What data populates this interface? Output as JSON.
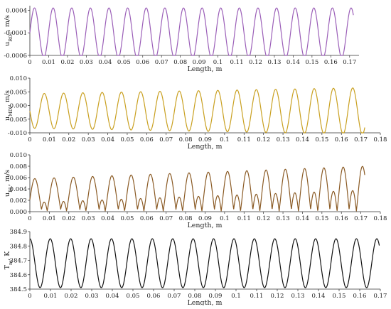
{
  "chart_data": [
    {
      "type": "line",
      "ylabel_main": "u",
      "ylabel_sub": "ROT",
      "ylabel_unit": ", m/s",
      "xlabel": "Length, m",
      "xlim": [
        0,
        0.175
      ],
      "ylim": [
        -0.0006,
        0.0005
      ],
      "xticks": [
        "0",
        "0.01",
        "0.02",
        "0.03",
        "0.04",
        "0.05",
        "0.06",
        "0.07",
        "0.08",
        "0.09",
        "0.1",
        "0.11",
        "0.12",
        "0.13",
        "0.14",
        "0.15",
        "0.16",
        "0.17"
      ],
      "yticks": [
        "0.0004",
        "-0.0001",
        "-0.0006"
      ],
      "color": "#9b5fb8",
      "signal": {
        "kind": "sine",
        "x_end": 0.172,
        "period": 0.0099,
        "phase_deg": 0,
        "center": -0.0001,
        "amplitude_start": 0.00055,
        "amplitude_end": 0.00055,
        "samples": 1200
      }
    },
    {
      "type": "line",
      "ylabel_main": "u",
      "ylabel_sub": "MIX",
      "ylabel_unit": ", m/s",
      "xlabel": "Length, m",
      "xlim": [
        0,
        0.18
      ],
      "ylim": [
        -0.01,
        0.01
      ],
      "xticks": [
        "0",
        "0.01",
        "0.02",
        "0.03",
        "0.04",
        "0.05",
        "0.06",
        "0.07",
        "0.08",
        "0.09",
        "0.1",
        "0.11",
        "0.12",
        "0.13",
        "0.14",
        "0.15",
        "0.16",
        "0.17",
        "0.18"
      ],
      "yticks": [
        "0.010",
        "0.005",
        "0.000",
        "-0.005",
        "-0.010"
      ],
      "color": "#c9a020",
      "signal": {
        "kind": "sine",
        "x_end": 0.172,
        "period": 0.0099,
        "phase_deg": 180,
        "center": -0.002,
        "amplitude_start": 0.0063,
        "amplitude_end": 0.0085,
        "samples": 1200
      }
    },
    {
      "type": "line",
      "ylabel_main": "u",
      "ylabel_sub": "BL",
      "ylabel_unit": ", m/s",
      "xlabel": "Length, m",
      "xlim": [
        0,
        0.18
      ],
      "ylim": [
        0,
        0.01
      ],
      "xticks": [
        "0",
        "0.01",
        "0.02",
        "0.03",
        "0.04",
        "0.05",
        "0.06",
        "0.07",
        "0.08",
        "0.09",
        "0.1",
        "0.11",
        "0.12",
        "0.13",
        "0.14",
        "0.15",
        "0.16",
        "0.17",
        "0.18"
      ],
      "yticks": [
        "0.010",
        "0.008",
        "0.006",
        "0.004",
        "0.002",
        "0.000"
      ],
      "color": "#8a5a24",
      "signal": {
        "kind": "abs_sum",
        "x_end": 0.172,
        "period": 0.0099,
        "rot_center": -0.0001,
        "rot_amplitude": 0.0029,
        "mix_center": -0.002,
        "mix_amplitude_start": 0.0063,
        "mix_amplitude_end": 0.0085,
        "samples": 1600
      }
    },
    {
      "type": "line",
      "ylabel_main": "T",
      "ylabel_sub": "m",
      "ylabel_unit": ", K",
      "xlabel": "Length, m",
      "xlim": [
        0,
        0.17
      ],
      "ylim": [
        384.5,
        384.9
      ],
      "xticks": [
        "0",
        "0.01",
        "0.02",
        "0.03",
        "0.04",
        "0.05",
        "0.06",
        "0.07",
        "0.08",
        "0.09",
        "0.1",
        "0.11",
        "0.12",
        "0.13",
        "0.14",
        "0.15",
        "0.16",
        "0.17"
      ],
      "yticks": [
        "384.9",
        "384.8",
        "384.7",
        "384.6",
        "384.5"
      ],
      "color": "#111111",
      "signal": {
        "kind": "sine",
        "x_end": 0.1695,
        "period": 0.0099,
        "phase_deg": 90,
        "center": 384.68,
        "amplitude_start": 0.17,
        "amplitude_end": 0.17,
        "samples": 1200
      }
    }
  ]
}
